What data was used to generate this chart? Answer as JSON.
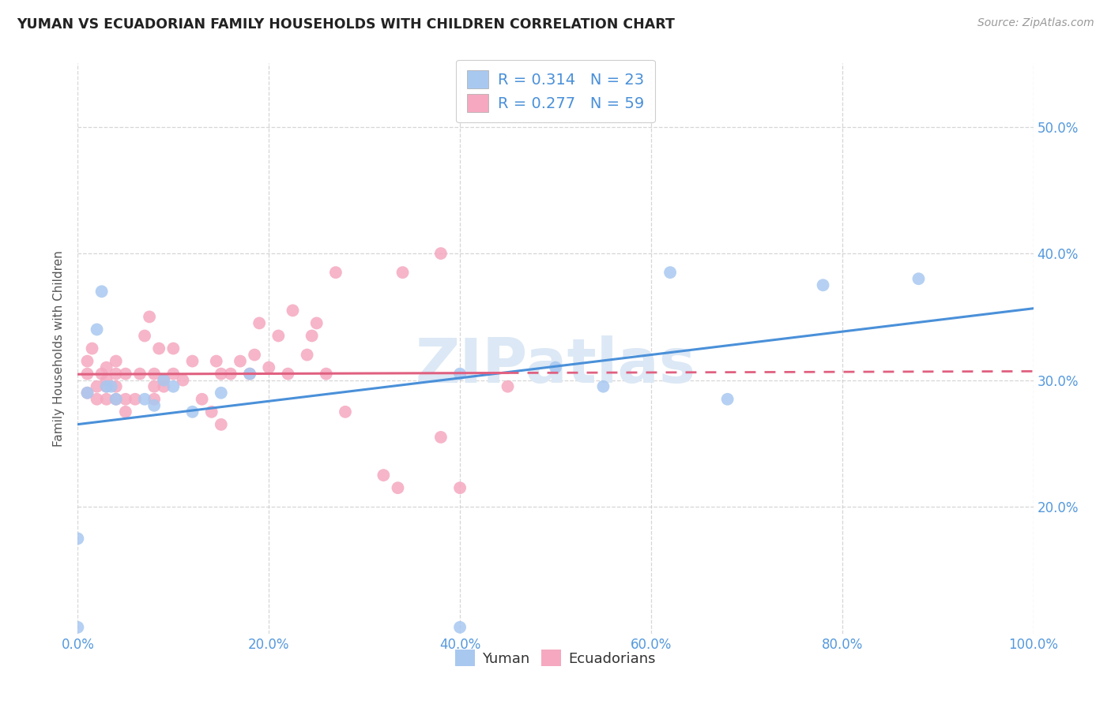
{
  "title": "YUMAN VS ECUADORIAN FAMILY HOUSEHOLDS WITH CHILDREN CORRELATION CHART",
  "source": "Source: ZipAtlas.com",
  "ylabel": "Family Households with Children",
  "yuman_R": 0.314,
  "yuman_N": 23,
  "ecuadorian_R": 0.277,
  "ecuadorian_N": 59,
  "yuman_color": "#a8c8f0",
  "yuman_line_color": "#4a90d9",
  "ecuadorian_color": "#f5a8c0",
  "ecuadorian_line_color": "#e06080",
  "background_color": "#ffffff",
  "watermark": "ZIPatlas",
  "xlim": [
    0.0,
    1.0
  ],
  "ylim": [
    0.1,
    0.55
  ],
  "xticks": [
    0.0,
    0.2,
    0.4,
    0.6,
    0.8,
    1.0
  ],
  "yticks": [
    0.2,
    0.3,
    0.4,
    0.5
  ],
  "yuman_x": [
    0.0,
    0.0,
    0.01,
    0.02,
    0.025,
    0.03,
    0.035,
    0.04,
    0.07,
    0.08,
    0.09,
    0.1,
    0.12,
    0.15,
    0.18,
    0.4,
    0.5,
    0.55,
    0.62,
    0.68,
    0.78,
    0.88,
    0.4
  ],
  "yuman_y": [
    0.105,
    0.175,
    0.29,
    0.34,
    0.37,
    0.295,
    0.295,
    0.285,
    0.285,
    0.28,
    0.3,
    0.295,
    0.275,
    0.29,
    0.305,
    0.305,
    0.31,
    0.295,
    0.385,
    0.285,
    0.375,
    0.38,
    0.105
  ],
  "ecuadorian_x": [
    0.01,
    0.01,
    0.01,
    0.015,
    0.02,
    0.02,
    0.025,
    0.03,
    0.03,
    0.03,
    0.03,
    0.04,
    0.04,
    0.04,
    0.04,
    0.05,
    0.05,
    0.05,
    0.06,
    0.065,
    0.07,
    0.075,
    0.08,
    0.08,
    0.08,
    0.085,
    0.09,
    0.09,
    0.1,
    0.1,
    0.11,
    0.12,
    0.13,
    0.14,
    0.145,
    0.15,
    0.15,
    0.16,
    0.17,
    0.18,
    0.185,
    0.19,
    0.2,
    0.21,
    0.22,
    0.225,
    0.24,
    0.245,
    0.25,
    0.26,
    0.27,
    0.28,
    0.32,
    0.335,
    0.34,
    0.38,
    0.4,
    0.45,
    0.38
  ],
  "ecuadorian_y": [
    0.29,
    0.305,
    0.315,
    0.325,
    0.285,
    0.295,
    0.305,
    0.285,
    0.295,
    0.3,
    0.31,
    0.285,
    0.295,
    0.305,
    0.315,
    0.275,
    0.285,
    0.305,
    0.285,
    0.305,
    0.335,
    0.35,
    0.285,
    0.295,
    0.305,
    0.325,
    0.3,
    0.295,
    0.305,
    0.325,
    0.3,
    0.315,
    0.285,
    0.275,
    0.315,
    0.265,
    0.305,
    0.305,
    0.315,
    0.305,
    0.32,
    0.345,
    0.31,
    0.335,
    0.305,
    0.355,
    0.32,
    0.335,
    0.345,
    0.305,
    0.385,
    0.275,
    0.225,
    0.215,
    0.385,
    0.255,
    0.215,
    0.295,
    0.4
  ]
}
